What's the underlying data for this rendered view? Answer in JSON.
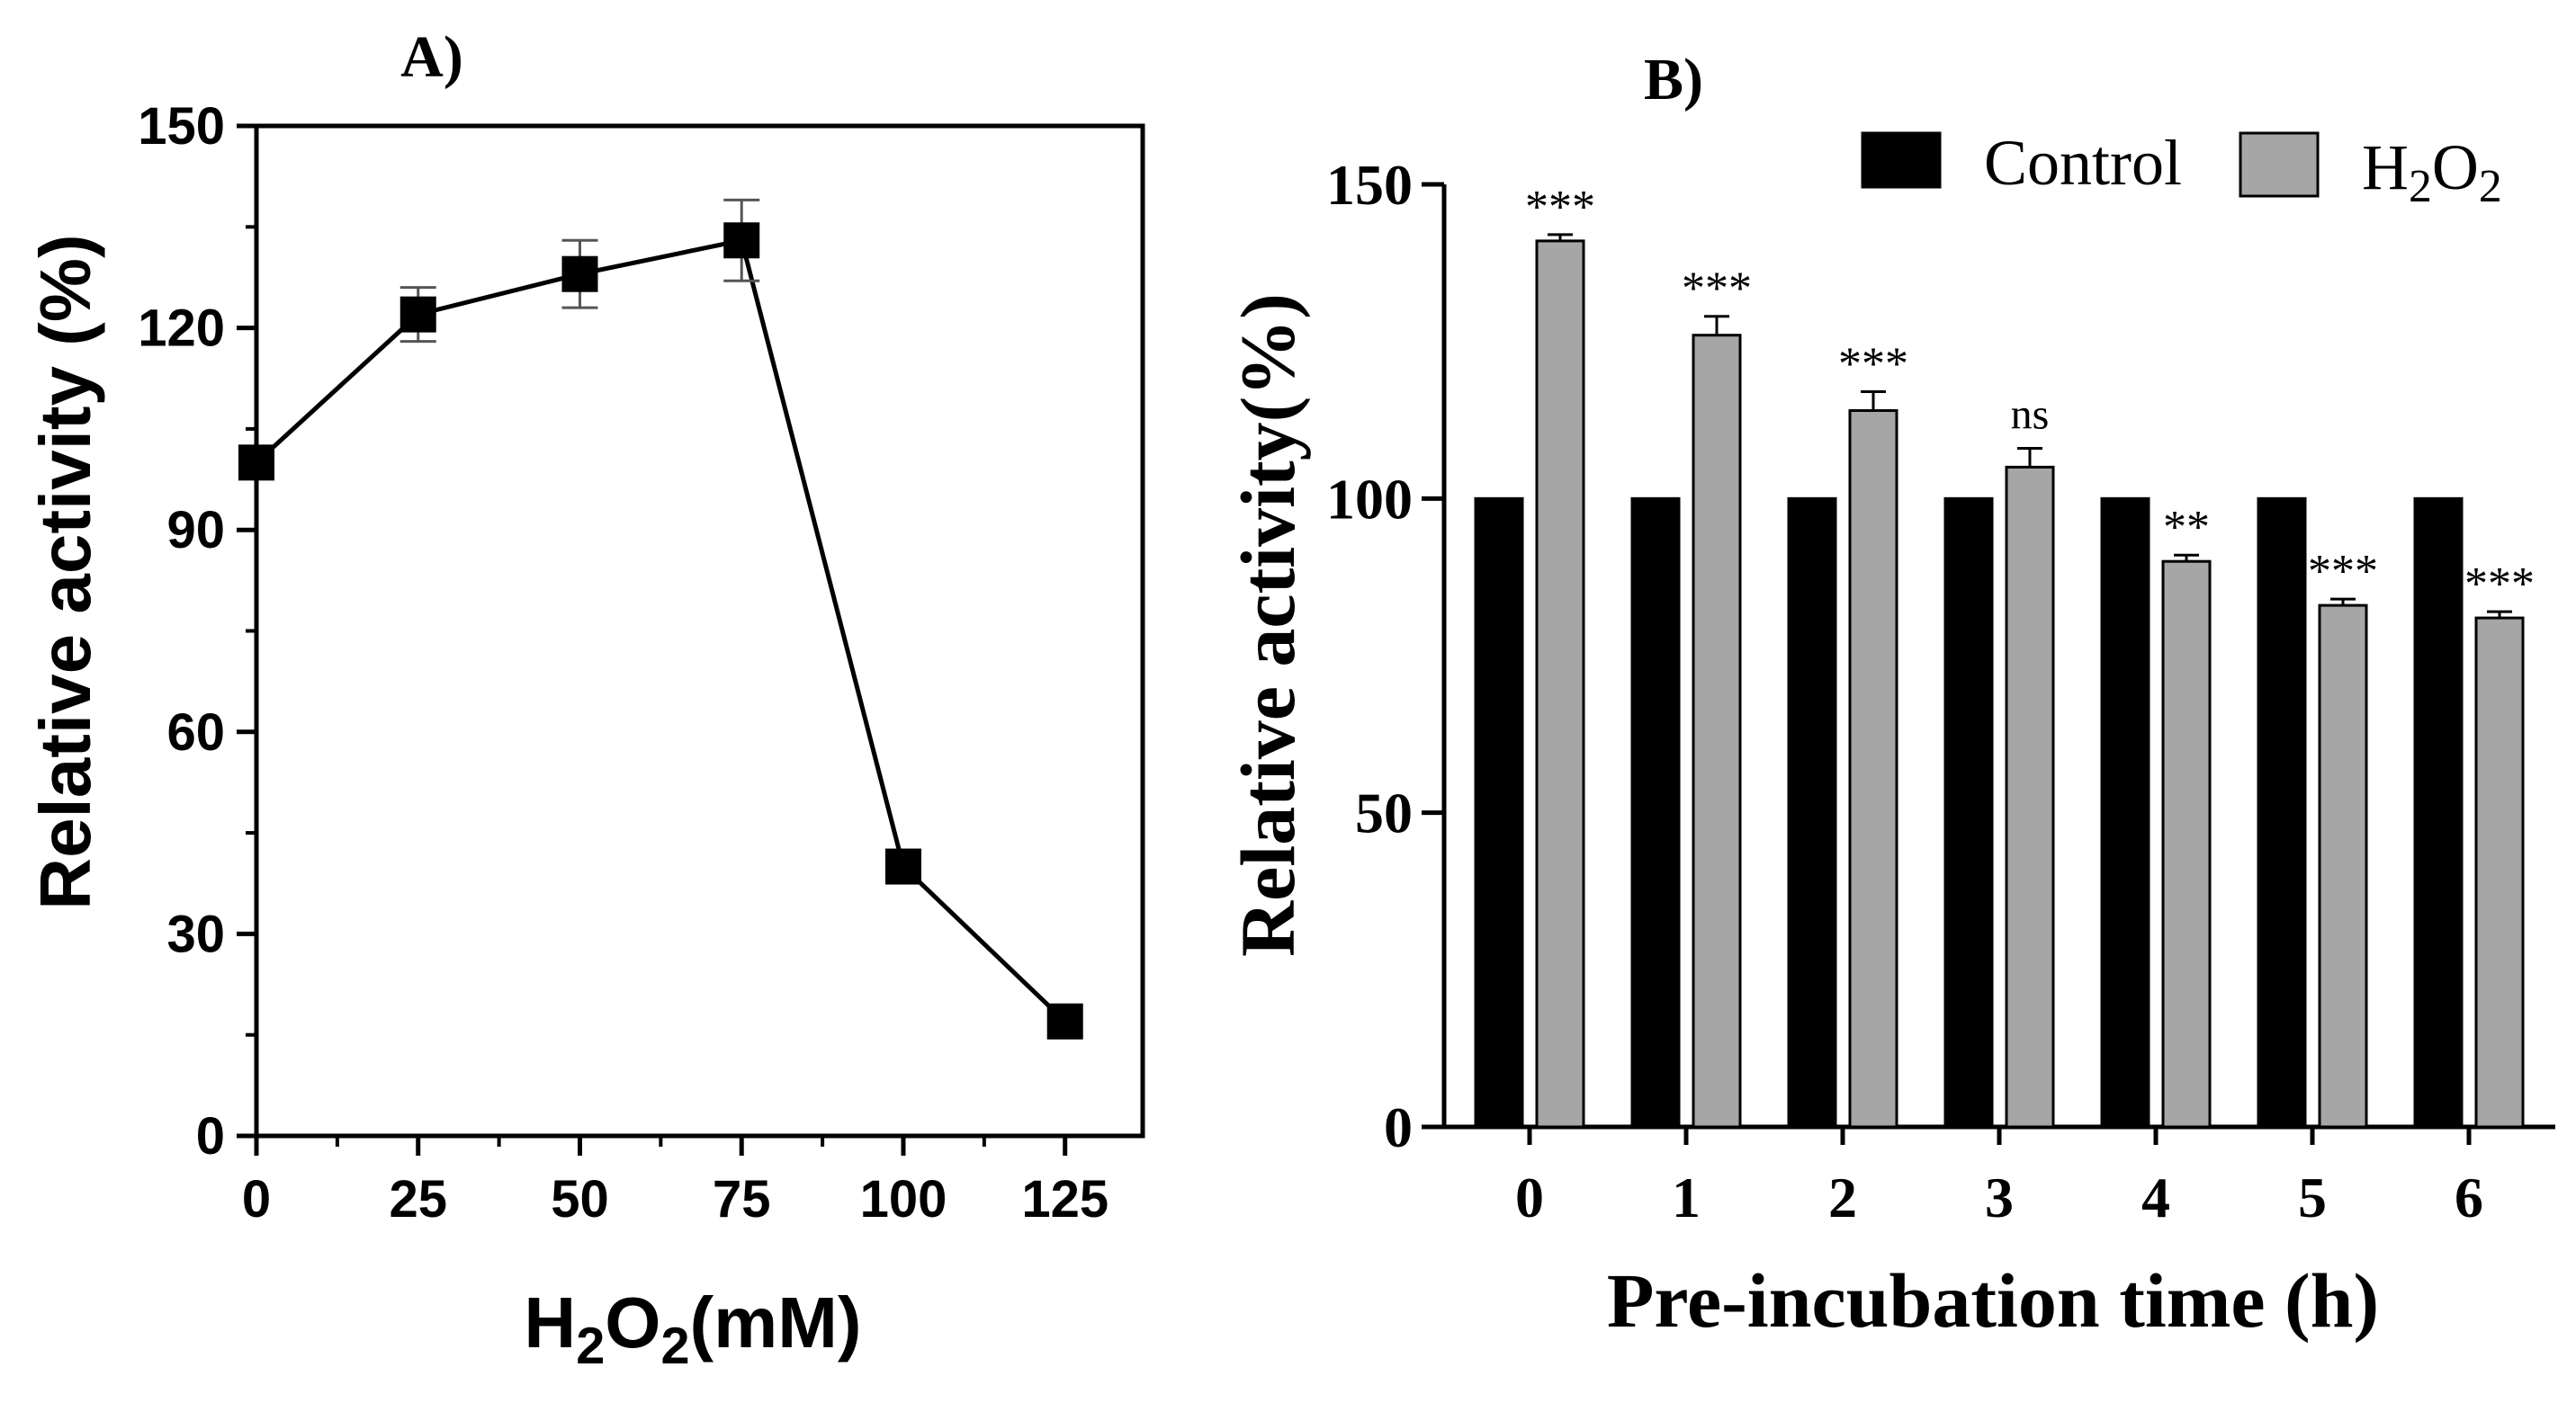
{
  "chart_data": [
    {
      "panel": "A)",
      "type": "line",
      "xlabel_parts": [
        "H",
        "2",
        "O",
        "2",
        "(mM)"
      ],
      "ylabel": "Relative activity (%)",
      "x": [
        0,
        25,
        50,
        75,
        100,
        125
      ],
      "y": [
        100,
        122,
        128,
        133,
        40,
        17
      ],
      "error": [
        0,
        4,
        5,
        6,
        0,
        0
      ],
      "xlim": [
        0,
        137
      ],
      "ylim": [
        0,
        150
      ],
      "xticks": [
        "0",
        "25",
        "50",
        "75",
        "100",
        "125"
      ],
      "yticks": [
        "0",
        "30",
        "60",
        "90",
        "120",
        "150"
      ],
      "marker": "square",
      "color": "#000000"
    },
    {
      "panel": "B)",
      "type": "bar",
      "xlabel": "Pre-incubation time (h)",
      "ylabel": "Relative activity(%)",
      "categories": [
        "0",
        "1",
        "2",
        "3",
        "4",
        "5",
        "6"
      ],
      "ylim": [
        0,
        150
      ],
      "yticks": [
        "0",
        "50",
        "100",
        "150"
      ],
      "series": [
        {
          "name": "Control",
          "values": [
            100,
            100,
            100,
            100,
            100,
            100,
            100
          ],
          "error": [
            0,
            0,
            0,
            0,
            0,
            0,
            0
          ],
          "color": "#000000"
        },
        {
          "name_parts": [
            "H",
            "2",
            "O",
            "2"
          ],
          "values": [
            141,
            126,
            114,
            105,
            90,
            83,
            81
          ],
          "error": [
            1,
            3,
            3,
            3,
            1,
            1,
            1
          ],
          "color": "#a6a6a6"
        }
      ],
      "significance": [
        "***",
        "***",
        "***",
        "ns",
        "**",
        "***",
        "***"
      ],
      "legend_position": "top-right"
    }
  ]
}
